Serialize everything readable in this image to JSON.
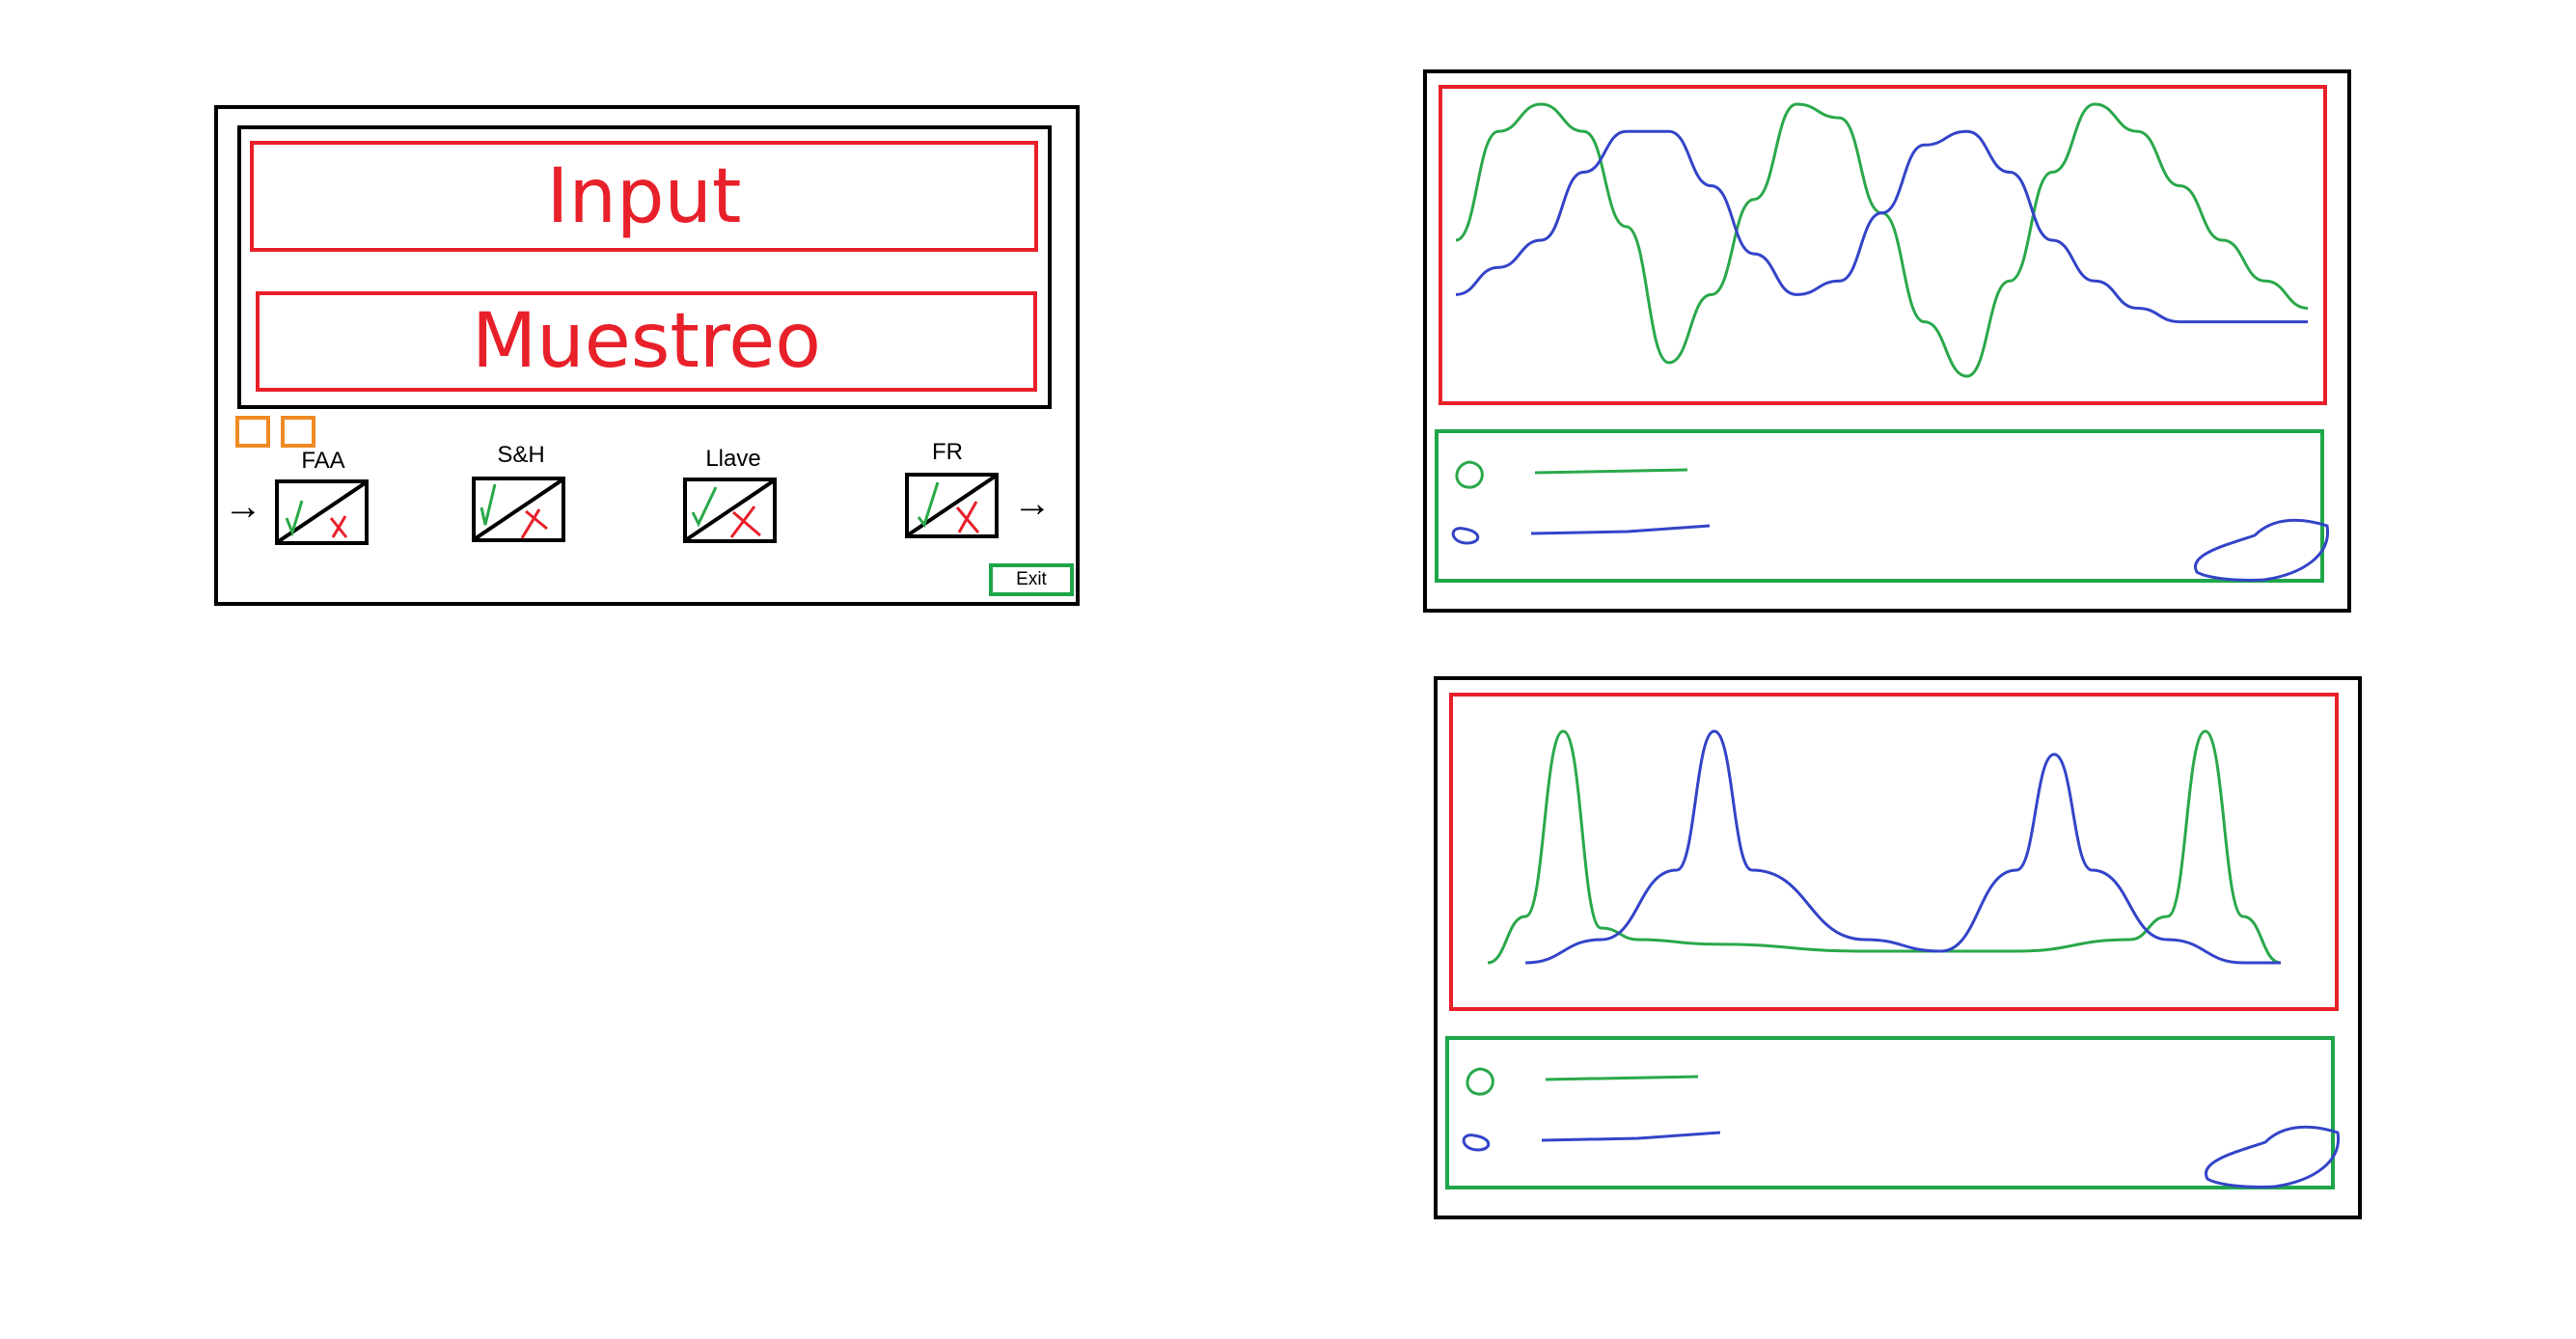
{
  "main_window": {
    "input_label": "Input",
    "muestreo_label": "Muestreo",
    "exit_label": "Exit",
    "input_arrow": "→",
    "output_arrow": "→",
    "stages": [
      {
        "label": "FAA"
      },
      {
        "label": "S&H"
      },
      {
        "label": "Llave"
      },
      {
        "label": "FR"
      }
    ]
  },
  "colors": {
    "accent_red": "#e8202a",
    "accent_green": "#1fa64a",
    "accent_orange": "#f08a23",
    "signal_green": "#2aa84a",
    "signal_blue": "#3344c8"
  },
  "chart_data": [
    {
      "type": "line",
      "title": "",
      "xlabel": "",
      "ylabel": "",
      "grid": false,
      "legend_placement": "bottom",
      "series": [
        {
          "color": "#2aa84a",
          "x": [
            0,
            0.1,
            0.2,
            0.3,
            0.4,
            0.5,
            0.6,
            0.7,
            0.8,
            0.9,
            1.0,
            1.1,
            1.2,
            1.3,
            1.4,
            1.5,
            1.6,
            1.7,
            1.8,
            1.9,
            2.0
          ],
          "values": [
            0.0,
            0.8,
            1.0,
            0.8,
            0.1,
            -0.9,
            -0.4,
            0.3,
            1.0,
            0.9,
            0.2,
            -0.6,
            -1.0,
            -0.3,
            0.5,
            1.0,
            0.8,
            0.4,
            0.0,
            -0.3,
            -0.5
          ]
        },
        {
          "color": "#3344c8",
          "x": [
            0,
            0.1,
            0.2,
            0.3,
            0.4,
            0.5,
            0.6,
            0.7,
            0.8,
            0.9,
            1.0,
            1.1,
            1.2,
            1.3,
            1.4,
            1.5,
            1.6,
            1.7,
            1.8,
            1.9,
            2.0
          ],
          "values": [
            -0.4,
            -0.2,
            0.0,
            0.5,
            0.8,
            0.8,
            0.4,
            -0.1,
            -0.4,
            -0.3,
            0.2,
            0.7,
            0.8,
            0.5,
            0.0,
            -0.3,
            -0.5,
            -0.6,
            -0.6,
            -0.6,
            -0.6
          ]
        }
      ]
    },
    {
      "type": "line",
      "title": "",
      "xlabel": "",
      "ylabel": "",
      "grid": false,
      "legend_placement": "bottom",
      "series": [
        {
          "color": "#2aa84a",
          "x": [
            0,
            0.05,
            0.1,
            0.15,
            0.2,
            0.3,
            0.5,
            0.7,
            0.85,
            0.9,
            0.95,
            1.0,
            1.05
          ],
          "values": [
            0.0,
            0.2,
            1.0,
            0.15,
            0.1,
            0.08,
            0.05,
            0.05,
            0.1,
            0.2,
            1.0,
            0.2,
            0.0
          ]
        },
        {
          "color": "#3344c8",
          "x": [
            0.05,
            0.15,
            0.25,
            0.3,
            0.35,
            0.5,
            0.6,
            0.7,
            0.75,
            0.8,
            0.9,
            1.0,
            1.05
          ],
          "values": [
            0.0,
            0.1,
            0.4,
            1.0,
            0.4,
            0.1,
            0.05,
            0.4,
            0.9,
            0.4,
            0.1,
            0.0,
            0.0
          ]
        }
      ]
    }
  ]
}
